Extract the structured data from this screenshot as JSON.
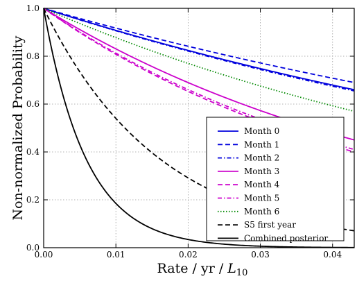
{
  "chart_data": {
    "type": "line",
    "title": "",
    "xlabel": "Rate / yr / ",
    "xlabel_symbol": "L",
    "xlabel_subscript": "10",
    "ylabel": "Non-normalized Probability",
    "xlim": [
      0.0,
      0.043
    ],
    "ylim": [
      0.0,
      1.0
    ],
    "xticks": [
      0.0,
      0.01,
      0.02,
      0.03,
      0.04
    ],
    "xtick_labels": [
      "0.00",
      "0.01",
      "0.02",
      "0.03",
      "0.04"
    ],
    "yticks": [
      0.0,
      0.2,
      0.4,
      0.6,
      0.8,
      1.0
    ],
    "ytick_labels": [
      "0.0",
      "0.2",
      "0.4",
      "0.6",
      "0.8",
      "1.0"
    ],
    "grid": true,
    "legend_position": "bottom-right",
    "model": "exponential decay",
    "series": [
      {
        "name": "Month 0",
        "color": "#0000dd",
        "dash": "solid",
        "x_end": 0.043,
        "y_end": 0.66
      },
      {
        "name": "Month 1",
        "color": "#0000dd",
        "dash": "dashed",
        "x_end": 0.043,
        "y_end": 0.69
      },
      {
        "name": "Month 2",
        "color": "#0000dd",
        "dash": "dashdot",
        "x_end": 0.043,
        "y_end": 0.655
      },
      {
        "name": "Month 3",
        "color": "#cc00cc",
        "dash": "solid",
        "x_end": 0.043,
        "y_end": 0.45
      },
      {
        "name": "Month 4",
        "color": "#cc00cc",
        "dash": "dashed",
        "x_end": 0.043,
        "y_end": 0.4
      },
      {
        "name": "Month 5",
        "color": "#cc00cc",
        "dash": "dashdot",
        "x_end": 0.043,
        "y_end": 0.41
      },
      {
        "name": "Month 6",
        "color": "#008800",
        "dash": "dotted",
        "x_end": 0.043,
        "y_end": 0.57
      },
      {
        "name": "S5 first year",
        "color": "#000000",
        "dash": "dashed",
        "x_end": 0.01,
        "y_end": 0.54
      },
      {
        "name": "Combined posterior",
        "color": "#000000",
        "dash": "solid",
        "x_end": 0.01,
        "y_end": 0.185
      }
    ]
  }
}
